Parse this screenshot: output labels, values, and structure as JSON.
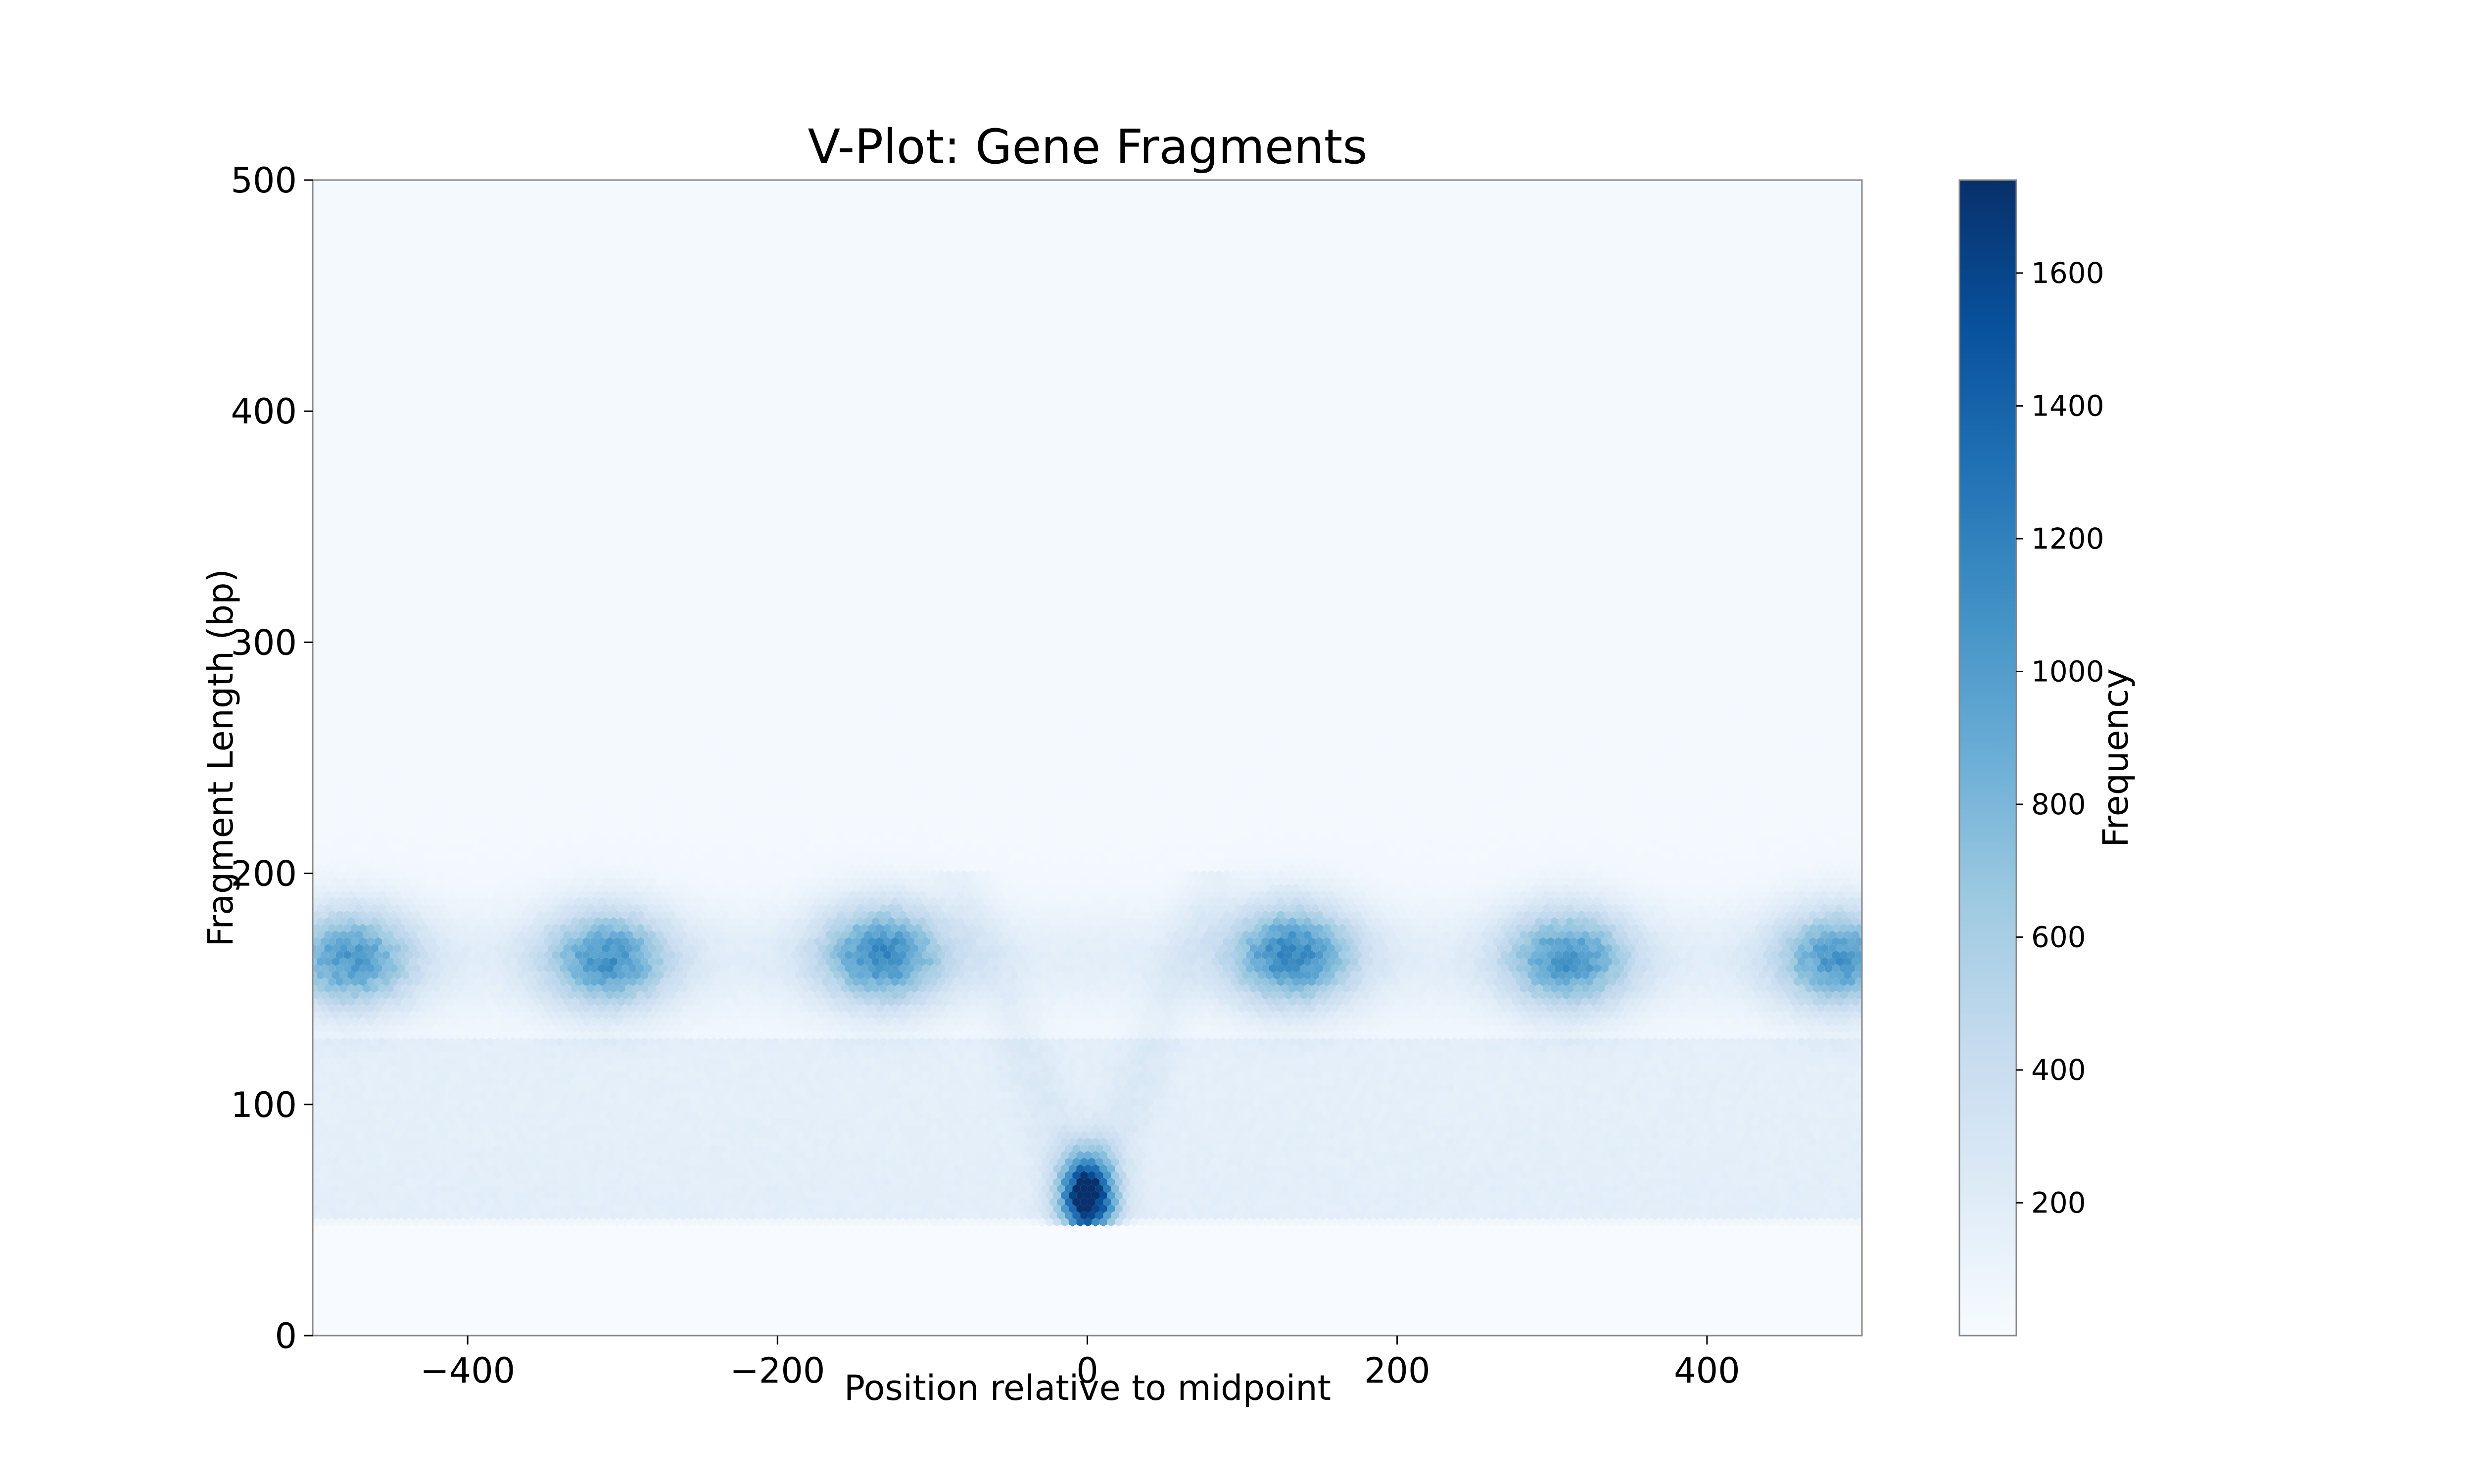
{
  "chart_data": {
    "type": "heatmap",
    "subtype": "hexbin",
    "title": "V-Plot: Gene Fragments",
    "xlabel": "Position relative to midpoint",
    "ylabel": "Fragment Length (bp)",
    "xlim": [
      -500,
      500
    ],
    "ylim": [
      0,
      500
    ],
    "x_ticks": [
      -400,
      -200,
      0,
      200,
      400
    ],
    "x_tick_labels": [
      "−400",
      "−200",
      "0",
      "200",
      "400"
    ],
    "y_ticks": [
      0,
      100,
      200,
      300,
      400,
      500
    ],
    "y_tick_labels": [
      "0",
      "100",
      "200",
      "300",
      "400",
      "500"
    ],
    "grid": false,
    "colormap": "Blues",
    "colorbar": {
      "label": "Frequency",
      "range": [
        0,
        1740
      ],
      "ticks": [
        200,
        400,
        600,
        800,
        1000,
        1200,
        1400,
        1600
      ],
      "tick_labels": [
        "200",
        "400",
        "600",
        "800",
        "1000",
        "1200",
        "1400",
        "1600"
      ]
    },
    "data_extent": {
      "y_min": 48,
      "y_max": 500
    },
    "hotspots": [
      {
        "x": 0,
        "y": 60,
        "peak": 1740,
        "sx": 12,
        "sy": 13,
        "note": "central V apex"
      },
      {
        "x": -475,
        "y": 163,
        "peak": 860,
        "sx": 28,
        "sy": 15
      },
      {
        "x": -310,
        "y": 163,
        "peak": 900,
        "sx": 28,
        "sy": 15
      },
      {
        "x": -132,
        "y": 165,
        "peak": 960,
        "sx": 28,
        "sy": 15
      },
      {
        "x": 132,
        "y": 165,
        "peak": 1000,
        "sx": 28,
        "sy": 15
      },
      {
        "x": 310,
        "y": 163,
        "peak": 900,
        "sx": 28,
        "sy": 15
      },
      {
        "x": 485,
        "y": 163,
        "peak": 880,
        "sx": 28,
        "sy": 15
      }
    ],
    "background_band": {
      "y_range": [
        50,
        130
      ],
      "level": 120
    }
  }
}
